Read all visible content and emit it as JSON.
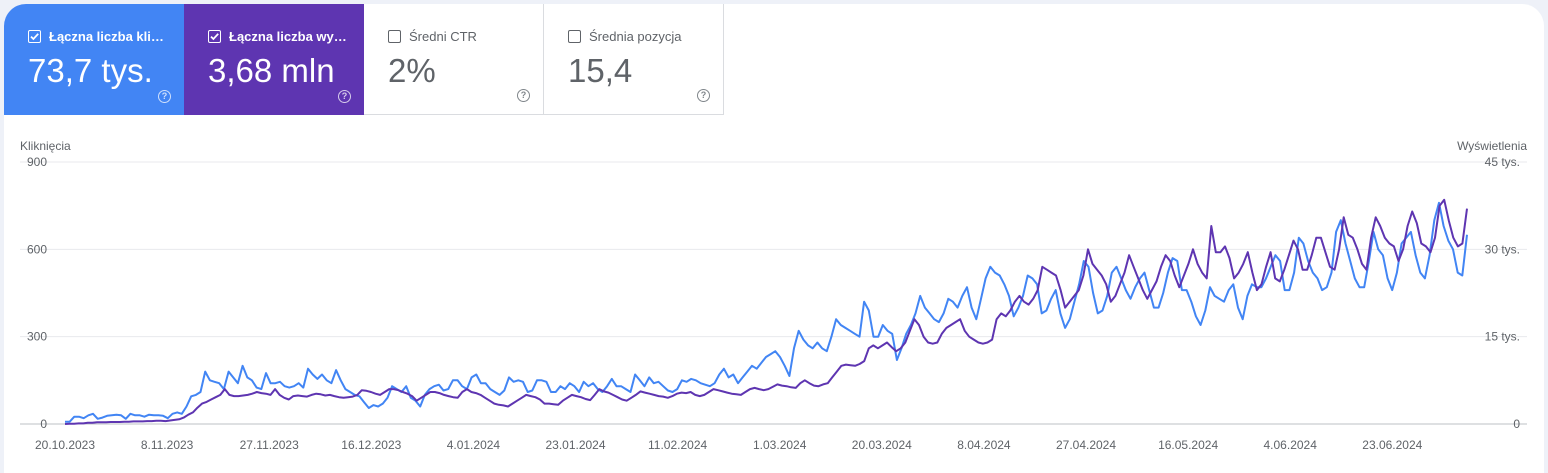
{
  "metrics": [
    {
      "label": "Łączna liczba klik…",
      "value": "73,7 tys.",
      "selected": true,
      "color": "#4285f4",
      "icon": "checkbox-checked-icon"
    },
    {
      "label": "Łączna liczba wy…",
      "value": "3,68 mln",
      "selected": true,
      "color": "#5e35b1",
      "icon": "checkbox-checked-icon"
    },
    {
      "label": "Średni CTR",
      "value": "2%",
      "selected": false,
      "icon": "checkbox-empty-icon"
    },
    {
      "label": "Średnia pozycja",
      "value": "15,4",
      "selected": false,
      "icon": "checkbox-empty-icon"
    }
  ],
  "help_icon": "help-circle-icon",
  "chart_data": {
    "type": "line",
    "title": "",
    "left_axis_label": "Kliknięcia",
    "right_axis_label": "Wyświetlenia",
    "left_ticks": [
      "0",
      "300",
      "600",
      "900"
    ],
    "right_ticks": [
      "0",
      "15 tys.",
      "30 tys.",
      "45 tys."
    ],
    "left_ylim": [
      0,
      900
    ],
    "right_ylim": [
      0,
      45000
    ],
    "x_labels": [
      "20.10.2023",
      "8.11.2023",
      "27.11.2023",
      "16.12.2023",
      "4.01.2024",
      "23.01.2024",
      "11.02.2024",
      "1.03.2024",
      "20.03.2024",
      "8.04.2024",
      "27.04.2024",
      "16.05.2024",
      "4.06.2024",
      "23.06.2024"
    ],
    "grid": true,
    "legend": "none",
    "series": [
      {
        "name": "Kliknięcia",
        "axis": "left",
        "color": "#4285f4",
        "values": [
          8,
          8,
          25,
          25,
          20,
          30,
          35,
          18,
          22,
          28,
          30,
          32,
          30,
          18,
          35,
          30,
          30,
          25,
          32,
          30,
          30,
          28,
          20,
          35,
          40,
          35,
          60,
          95,
          100,
          110,
          180,
          150,
          145,
          140,
          120,
          180,
          160,
          140,
          200,
          160,
          150,
          125,
          120,
          175,
          140,
          140,
          145,
          130,
          125,
          130,
          140,
          125,
          190,
          170,
          155,
          170,
          150,
          140,
          185,
          150,
          120,
          110,
          100,
          95,
          75,
          55,
          65,
          60,
          70,
          90,
          130,
          120,
          110,
          130,
          90,
          80,
          60,
          100,
          120,
          130,
          135,
          115,
          120,
          150,
          150,
          130,
          120,
          160,
          170,
          140,
          140,
          120,
          110,
          100,
          115,
          160,
          145,
          150,
          145,
          110,
          115,
          150,
          150,
          145,
          110,
          110,
          130,
          120,
          140,
          130,
          110,
          145,
          130,
          140,
          120,
          110,
          130,
          155,
          130,
          130,
          120,
          110,
          170,
          150,
          130,
          160,
          140,
          145,
          130,
          115,
          110,
          120,
          150,
          145,
          155,
          150,
          140,
          135,
          130,
          140,
          170,
          190,
          160,
          170,
          140,
          160,
          180,
          200,
          190,
          210,
          230,
          240,
          250,
          230,
          200,
          165,
          260,
          320,
          290,
          270,
          260,
          280,
          260,
          250,
          300,
          360,
          340,
          330,
          320,
          310,
          300,
          420,
          390,
          300,
          300,
          340,
          320,
          310,
          220,
          260,
          310,
          340,
          380,
          440,
          400,
          380,
          360,
          350,
          380,
          430,
          420,
          400,
          440,
          470,
          400,
          360,
          430,
          500,
          540,
          520,
          510,
          480,
          440,
          370,
          400,
          440,
          510,
          500,
          480,
          380,
          390,
          430,
          460,
          380,
          330,
          360,
          420,
          480,
          560,
          540,
          450,
          380,
          390,
          440,
          520,
          540,
          500,
          460,
          430,
          470,
          500,
          520,
          460,
          400,
          400,
          450,
          520,
          570,
          560,
          460,
          460,
          420,
          370,
          340,
          390,
          470,
          440,
          430,
          420,
          460,
          480,
          400,
          360,
          440,
          480,
          470,
          470,
          500,
          540,
          580,
          560,
          460,
          460,
          520,
          640,
          620,
          560,
          520,
          500,
          460,
          470,
          520,
          660,
          700,
          620,
          560,
          500,
          470,
          470,
          560,
          660,
          600,
          580,
          500,
          460,
          520,
          620,
          640,
          660,
          580,
          520,
          500,
          580,
          700,
          760,
          680,
          630,
          600,
          520,
          510,
          650
        ]
      },
      {
        "name": "Wyświetlenia",
        "axis": "right",
        "color": "#5e35b1",
        "values": [
          0,
          50,
          50,
          100,
          100,
          200,
          200,
          300,
          300,
          300,
          350,
          350,
          350,
          400,
          400,
          450,
          450,
          450,
          500,
          500,
          550,
          550,
          500,
          600,
          700,
          800,
          1100,
          1600,
          2000,
          2800,
          3500,
          3800,
          4200,
          4600,
          5000,
          6000,
          5000,
          4800,
          4800,
          4900,
          5000,
          5200,
          5500,
          5300,
          5200,
          5000,
          6000,
          5000,
          4500,
          4200,
          4800,
          4900,
          4800,
          4700,
          5000,
          5200,
          5100,
          4900,
          5000,
          4800,
          4600,
          4500,
          4600,
          4700,
          5000,
          5800,
          5700,
          5500,
          5200,
          5000,
          5500,
          6000,
          6000,
          5800,
          5500,
          5200,
          4800,
          4000,
          4500,
          5000,
          5500,
          5500,
          5300,
          5000,
          4800,
          4600,
          4500,
          5500,
          6000,
          5500,
          5300,
          5000,
          4500,
          4000,
          3500,
          3300,
          3200,
          3000,
          3500,
          4000,
          4500,
          5000,
          4800,
          4600,
          4200,
          3500,
          3500,
          3400,
          3300,
          4000,
          4500,
          5000,
          4800,
          4600,
          4300,
          4100,
          5000,
          6000,
          5600,
          5400,
          5000,
          4600,
          4200,
          4000,
          4500,
          5000,
          5600,
          5400,
          5200,
          5000,
          4800,
          4700,
          4500,
          4800,
          5200,
          5400,
          5300,
          5500,
          5000,
          4800,
          5000,
          5500,
          6000,
          5800,
          5600,
          5400,
          5200,
          5100,
          5000,
          5500,
          6000,
          6200,
          6000,
          5800,
          6000,
          6400,
          6800,
          6600,
          6500,
          6300,
          6200,
          7000,
          7500,
          7000,
          6600,
          6500,
          6800,
          7000,
          8000,
          9000,
          10000,
          10200,
          10100,
          10000,
          10300,
          10800,
          13000,
          13500,
          13000,
          13500,
          14000,
          13200,
          12500,
          13000,
          14000,
          16000,
          18000,
          17000,
          15000,
          14000,
          13800,
          14000,
          15500,
          16500,
          17000,
          17500,
          18000,
          16000,
          15000,
          14500,
          14000,
          13800,
          14000,
          14500,
          18000,
          19000,
          18500,
          19500,
          21000,
          22000,
          21000,
          20500,
          21500,
          23000,
          27000,
          26500,
          26000,
          25500,
          23000,
          20000,
          21000,
          22000,
          23000,
          25500,
          30000,
          27500,
          26500,
          25500,
          24000,
          21000,
          22000,
          24000,
          26000,
          29000,
          27000,
          25000,
          23000,
          21500,
          23000,
          24500,
          27000,
          29000,
          28000,
          25500,
          23500,
          25500,
          27500,
          30000,
          27500,
          26000,
          25000,
          34000,
          29500,
          29500,
          30500,
          28500,
          25000,
          26000,
          27500,
          29500,
          26000,
          23000,
          24000,
          27000,
          29500,
          25000,
          24500,
          26500,
          29000,
          31500,
          30000,
          26500,
          26500,
          29000,
          32000,
          32000,
          29500,
          27000,
          26500,
          30000,
          35500,
          32500,
          32000,
          30000,
          27500,
          26500,
          32000,
          35500,
          34000,
          32000,
          31000,
          30500,
          28000,
          30000,
          34000,
          36500,
          34500,
          31000,
          30500,
          29500,
          32000,
          37500,
          38500,
          35000,
          32000,
          30500,
          31000,
          37000
        ]
      }
    ]
  }
}
